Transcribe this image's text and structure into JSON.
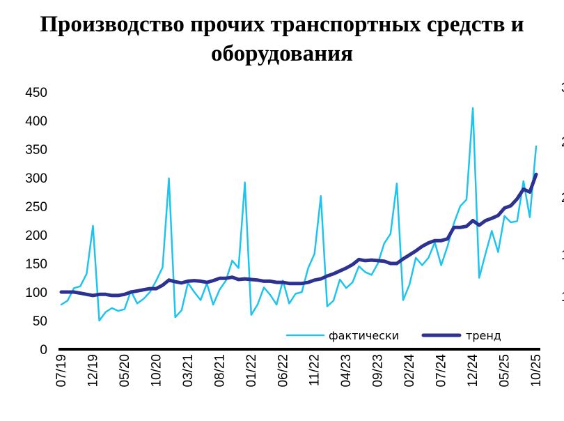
{
  "chart_data": {
    "type": "line",
    "title_lines": [
      "Производство прочих транспортных средств и",
      "оборудования"
    ],
    "xlabel": "",
    "ylabel": "",
    "ylim": [
      0,
      450
    ],
    "yticks": [
      "0",
      "50",
      "100",
      "150",
      "200",
      "250",
      "300",
      "350",
      "400",
      "450"
    ],
    "grid": false,
    "legend_position": "bottom-right",
    "x": [
      "07/19",
      "08/19",
      "09/19",
      "10/19",
      "11/19",
      "12/19",
      "01/20",
      "02/20",
      "03/20",
      "04/20",
      "05/20",
      "06/20",
      "07/20",
      "08/20",
      "09/20",
      "10/20",
      "11/20",
      "12/20",
      "01/21",
      "02/21",
      "03/21",
      "04/21",
      "05/21",
      "06/21",
      "07/21",
      "08/21",
      "09/21",
      "10/21",
      "11/21",
      "12/21",
      "01/22",
      "02/22",
      "03/22",
      "04/22",
      "05/22",
      "06/22",
      "07/22",
      "08/22",
      "09/22",
      "10/22",
      "11/22",
      "12/22",
      "01/23",
      "02/23",
      "03/23",
      "04/23",
      "05/23",
      "06/23",
      "07/23",
      "08/23",
      "09/23",
      "10/23",
      "11/23",
      "12/23",
      "01/24",
      "02/24",
      "03/24",
      "04/24",
      "05/24",
      "06/24",
      "07/24",
      "08/24",
      "09/24",
      "10/24",
      "11/24",
      "12/24",
      "01/25",
      "02/25",
      "03/25",
      "04/25",
      "05/25",
      "06/25",
      "07/25",
      "08/25",
      "09/25",
      "10/25"
    ],
    "xtick_labels": [
      "07/19",
      "12/19",
      "05/20",
      "10/20",
      "03/21",
      "08/21",
      "01/22",
      "06/22",
      "11/22",
      "04/23",
      "09/23",
      "02/24",
      "07/24",
      "12/24",
      "05/25",
      "10/25"
    ],
    "series": [
      {
        "name": "фактически",
        "color": "#1FC4EE",
        "values": [
          78,
          85,
          107,
          110,
          132,
          216,
          50,
          65,
          72,
          67,
          70,
          102,
          80,
          88,
          100,
          120,
          143,
          299,
          56,
          68,
          116,
          100,
          86,
          115,
          78,
          104,
          120,
          155,
          142,
          292,
          60,
          78,
          108,
          95,
          78,
          120,
          80,
          97,
          100,
          142,
          167,
          268,
          75,
          85,
          122,
          107,
          117,
          145,
          135,
          130,
          150,
          185,
          202,
          290,
          86,
          113,
          160,
          147,
          160,
          187,
          147,
          180,
          220,
          250,
          262,
          422,
          125,
          167,
          207,
          170,
          233,
          222,
          224,
          294,
          231,
          355
        ],
        "width": 2.5
      },
      {
        "name": "тренд",
        "color": "#2D3190",
        "values": [
          100,
          100,
          100,
          98,
          96,
          94,
          96,
          96,
          94,
          94,
          96,
          100,
          102,
          104,
          106,
          106,
          112,
          121,
          118,
          116,
          119,
          120,
          119,
          117,
          120,
          124,
          124,
          126,
          122,
          123,
          122,
          121,
          119,
          119,
          117,
          117,
          115,
          115,
          115,
          117,
          121,
          123,
          128,
          132,
          137,
          142,
          148,
          157,
          155,
          156,
          155,
          154,
          150,
          150,
          158,
          165,
          172,
          180,
          186,
          190,
          190,
          193,
          213,
          213,
          215,
          225,
          217,
          225,
          229,
          234,
          247,
          251,
          263,
          280,
          275,
          306
        ],
        "width": 5
      }
    ],
    "right_axis_partial_labels": [
      "3",
      "2",
      "2",
      "1",
      "1"
    ]
  }
}
